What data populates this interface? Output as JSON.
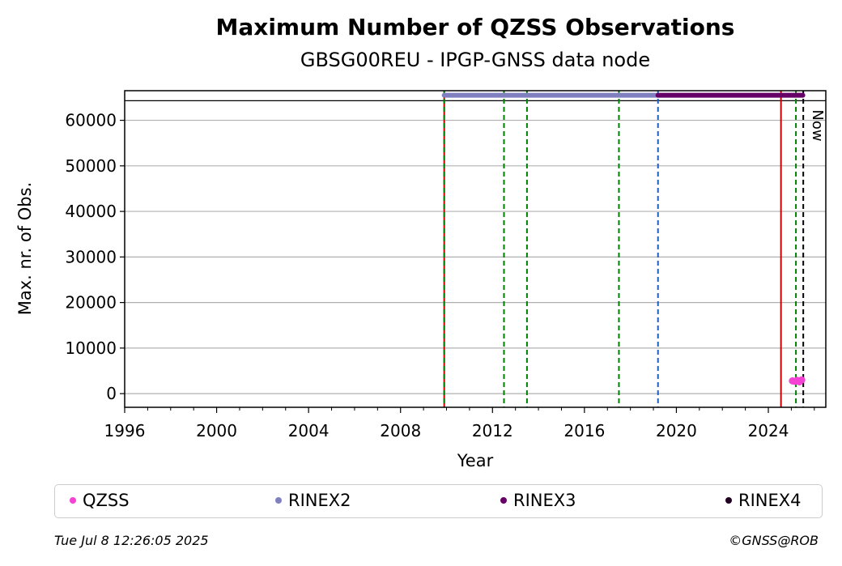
{
  "chart_data": {
    "type": "scatter",
    "title": "Maximum Number of QZSS Observations",
    "subtitle": "GBSG00REU - IPGP-GNSS data node",
    "xlabel": "Year",
    "ylabel": "Max. nr. of Obs.",
    "xlim": [
      1996,
      2026.5
    ],
    "ylim": [
      -3000,
      66500
    ],
    "x_ticks": [
      1996,
      2000,
      2004,
      2008,
      2012,
      2016,
      2020,
      2024
    ],
    "x_tick_labels": [
      "1996",
      "2000",
      "2004",
      "2008",
      "2012",
      "2016",
      "2020",
      "2024"
    ],
    "y_ticks": [
      0,
      10000,
      20000,
      30000,
      40000,
      50000,
      60000
    ],
    "y_tick_labels": [
      "0",
      "10000",
      "20000",
      "30000",
      "40000",
      "50000",
      "60000"
    ],
    "grid": "horizontal",
    "reference_line": 64300,
    "now_label": "Now",
    "series": [
      {
        "name": "QZSS",
        "color": "#f542d4",
        "x": [
          2025.05,
          2025.15,
          2025.25,
          2025.35,
          2025.45
        ],
        "y": [
          2800,
          2700,
          2900,
          2600,
          3000
        ]
      },
      {
        "name": "RINEX2",
        "color": "#8080c0",
        "x_range": [
          2009.9,
          2019.2
        ],
        "y": 65500
      },
      {
        "name": "RINEX3",
        "color": "#660066",
        "x_range": [
          2019.2,
          2025.5
        ],
        "y": 65500
      },
      {
        "name": "RINEX4",
        "color": "#220022",
        "x_range": [],
        "y": 65500
      }
    ],
    "vertical_lines": [
      {
        "x": 2009.9,
        "color": "#cc0000",
        "style": "solid"
      },
      {
        "x": 2009.9,
        "color": "#008000",
        "style": "dashed"
      },
      {
        "x": 2012.5,
        "color": "#008000",
        "style": "dashed"
      },
      {
        "x": 2013.5,
        "color": "#008000",
        "style": "dashed"
      },
      {
        "x": 2017.5,
        "color": "#008000",
        "style": "dashed"
      },
      {
        "x": 2019.2,
        "color": "#1f5fbf",
        "style": "dashed"
      },
      {
        "x": 2024.55,
        "color": "#cc0000",
        "style": "solid"
      },
      {
        "x": 2025.2,
        "color": "#008000",
        "style": "dashed"
      },
      {
        "x": 2025.52,
        "color": "#000000",
        "style": "dashed"
      }
    ],
    "legend_position": "bottom"
  },
  "legend": [
    {
      "label": "QZSS",
      "color": "#f542d4"
    },
    {
      "label": "RINEX2",
      "color": "#8080c0"
    },
    {
      "label": "RINEX3",
      "color": "#660066"
    },
    {
      "label": "RINEX4",
      "color": "#220022"
    }
  ],
  "footer": {
    "timestamp": "Tue Jul  8 12:26:05 2025",
    "copyright": "©GNSS@ROB"
  }
}
